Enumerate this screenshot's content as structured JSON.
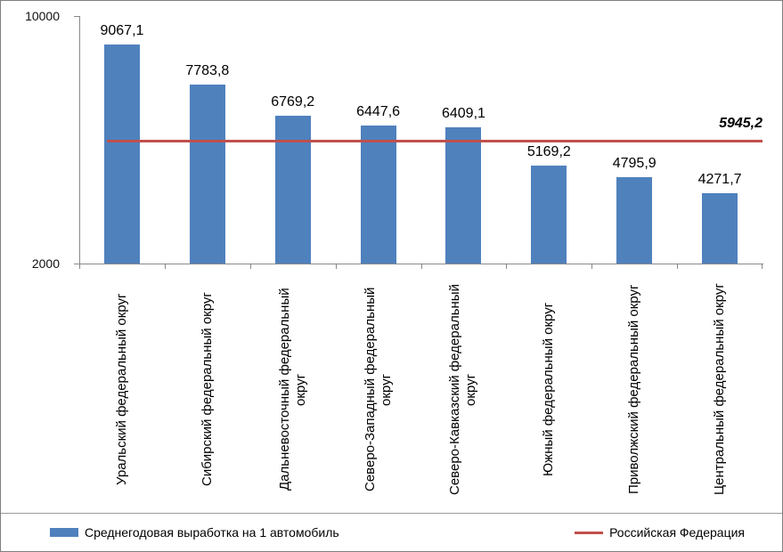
{
  "chart_data": {
    "type": "bar",
    "title": "",
    "categories": [
      "Уральский федеральный округ",
      "Сибирский федеральный округ",
      "Дальневосточный федеральный округ",
      "Северо-Западный федеральный округ",
      "Северо-Кавказский федеральный округ",
      "Южный федеральный округ",
      "Приволжский федеральный округ",
      "Центральный федеральный округ"
    ],
    "series": [
      {
        "name": "Среднегодовая выработка на 1 автомобиль",
        "type": "column",
        "color": "#4f81bd",
        "values": [
          9067.1,
          7783.8,
          6769.2,
          6447.6,
          6409.1,
          5169.2,
          4795.9,
          4271.7
        ],
        "labels": [
          "9067,1",
          "7783,8",
          "6769,2",
          "6447,6",
          "6409,1",
          "5169,2",
          "4795,9",
          "4271,7"
        ]
      },
      {
        "name": "Российская Федерация",
        "type": "line",
        "color": "#c0504d",
        "value": 5945.2,
        "label": "5945,2"
      }
    ],
    "ylim": [
      2000,
      10000
    ],
    "ytick_labels": [
      "10000",
      "2000"
    ],
    "grid": false,
    "legend_position": "bottom"
  }
}
